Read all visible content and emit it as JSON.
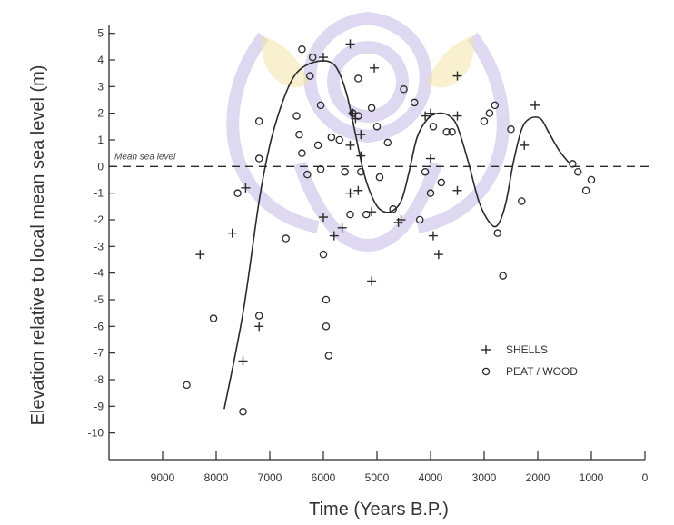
{
  "chart_data": {
    "type": "scatter",
    "xlabel": "Time (Years B.P.)",
    "ylabel": "Elevation relative to local mean sea level (m)",
    "xlim": [
      10000,
      0
    ],
    "ylim": [
      -11,
      5.5
    ],
    "x_ticks": [
      9000,
      8000,
      7000,
      6000,
      5000,
      4000,
      3000,
      2000,
      1000,
      0
    ],
    "y_ticks": [
      5,
      4,
      3,
      2,
      1,
      0,
      -1,
      -2,
      -3,
      -4,
      -5,
      -6,
      -7,
      -8,
      -9,
      -10
    ],
    "annotations": [
      {
        "text": "Mean sea level",
        "y": 0
      }
    ],
    "reference_line": {
      "y": 0,
      "style": "dashed"
    },
    "legend": {
      "position": "lower-right",
      "entries": [
        {
          "marker": "+",
          "label": "SHELLS"
        },
        {
          "marker": "o",
          "label": "PEAT / WOOD"
        }
      ]
    },
    "series": [
      {
        "name": "SHELLS",
        "marker": "+",
        "points": [
          [
            8300,
            -3.3
          ],
          [
            7700,
            -2.5
          ],
          [
            7450,
            -0.8
          ],
          [
            7500,
            -7.3
          ],
          [
            7200,
            -6.0
          ],
          [
            6000,
            -1.9
          ],
          [
            5800,
            -2.6
          ],
          [
            5650,
            -2.3
          ],
          [
            5500,
            -1.0
          ],
          [
            5350,
            -0.9
          ],
          [
            5300,
            0.4
          ],
          [
            5300,
            1.2
          ],
          [
            5450,
            2.0
          ],
          [
            5400,
            1.8
          ],
          [
            5500,
            0.8
          ],
          [
            5500,
            4.6
          ],
          [
            5050,
            3.7
          ],
          [
            5100,
            -4.3
          ],
          [
            5100,
            -1.7
          ],
          [
            4600,
            -2.1
          ],
          [
            4550,
            -2.0
          ],
          [
            4100,
            1.9
          ],
          [
            4000,
            2.0
          ],
          [
            4000,
            0.3
          ],
          [
            3950,
            -2.6
          ],
          [
            3850,
            -3.3
          ],
          [
            3500,
            1.9
          ],
          [
            3500,
            3.4
          ],
          [
            3500,
            -0.9
          ],
          [
            2050,
            2.3
          ],
          [
            2250,
            0.8
          ],
          [
            6000,
            4.1
          ]
        ]
      },
      {
        "name": "PEAT / WOOD",
        "marker": "o",
        "points": [
          [
            8550,
            -8.2
          ],
          [
            8050,
            -5.7
          ],
          [
            7600,
            -1.0
          ],
          [
            7200,
            1.7
          ],
          [
            7200,
            0.3
          ],
          [
            7200,
            -5.6
          ],
          [
            7500,
            -9.2
          ],
          [
            6700,
            -2.7
          ],
          [
            6500,
            1.9
          ],
          [
            6450,
            1.2
          ],
          [
            6400,
            4.4
          ],
          [
            6400,
            0.5
          ],
          [
            6300,
            -0.3
          ],
          [
            6250,
            3.4
          ],
          [
            6200,
            4.1
          ],
          [
            6100,
            0.8
          ],
          [
            6050,
            -0.1
          ],
          [
            6050,
            2.3
          ],
          [
            6000,
            -3.3
          ],
          [
            5950,
            -5.0
          ],
          [
            5950,
            -6.0
          ],
          [
            5900,
            -7.1
          ],
          [
            5850,
            1.1
          ],
          [
            5700,
            1.0
          ],
          [
            5600,
            -0.2
          ],
          [
            5500,
            -1.8
          ],
          [
            5450,
            2.0
          ],
          [
            5350,
            1.9
          ],
          [
            5350,
            3.3
          ],
          [
            5300,
            -0.2
          ],
          [
            5200,
            -1.8
          ],
          [
            5100,
            2.2
          ],
          [
            5000,
            1.5
          ],
          [
            4950,
            -0.4
          ],
          [
            4800,
            0.9
          ],
          [
            4700,
            -1.6
          ],
          [
            4500,
            2.9
          ],
          [
            4300,
            2.4
          ],
          [
            4200,
            -2.0
          ],
          [
            4100,
            -0.2
          ],
          [
            4000,
            -1.0
          ],
          [
            3950,
            1.5
          ],
          [
            3800,
            -0.6
          ],
          [
            3700,
            1.3
          ],
          [
            3600,
            1.3
          ],
          [
            3000,
            1.7
          ],
          [
            2900,
            2.0
          ],
          [
            2800,
            2.3
          ],
          [
            2750,
            -2.5
          ],
          [
            2650,
            -4.1
          ],
          [
            2500,
            1.4
          ],
          [
            2300,
            -1.3
          ],
          [
            1350,
            0.1
          ],
          [
            1250,
            -0.2
          ],
          [
            1100,
            -0.9
          ],
          [
            1000,
            -0.5
          ]
        ]
      }
    ],
    "trend_curve": [
      [
        7850,
        -9.1
      ],
      [
        7500,
        -5.5
      ],
      [
        7200,
        -1.3
      ],
      [
        7000,
        0.8
      ],
      [
        6800,
        2.2
      ],
      [
        6600,
        3.2
      ],
      [
        6400,
        3.7
      ],
      [
        6100,
        3.95
      ],
      [
        5850,
        3.9
      ],
      [
        5700,
        3.5
      ],
      [
        5550,
        2.6
      ],
      [
        5400,
        1.2
      ],
      [
        5250,
        -0.2
      ],
      [
        5100,
        -1.1
      ],
      [
        4950,
        -1.6
      ],
      [
        4750,
        -1.7
      ],
      [
        4550,
        -1.3
      ],
      [
        4400,
        -0.2
      ],
      [
        4250,
        1.1
      ],
      [
        4050,
        1.8
      ],
      [
        3850,
        2.0
      ],
      [
        3650,
        1.9
      ],
      [
        3500,
        1.5
      ],
      [
        3300,
        0.2
      ],
      [
        3100,
        -1.3
      ],
      [
        2900,
        -2.1
      ],
      [
        2750,
        -2.2
      ],
      [
        2600,
        -1.4
      ],
      [
        2450,
        0.2
      ],
      [
        2300,
        1.4
      ],
      [
        2150,
        1.8
      ],
      [
        1950,
        1.8
      ],
      [
        1800,
        1.3
      ],
      [
        1600,
        0.6
      ],
      [
        1400,
        0.1
      ]
    ]
  },
  "colors": {
    "ink": "#2a2a2a",
    "watermark": "#d9d3ee",
    "watermark_gold": "#f3e3a6"
  }
}
